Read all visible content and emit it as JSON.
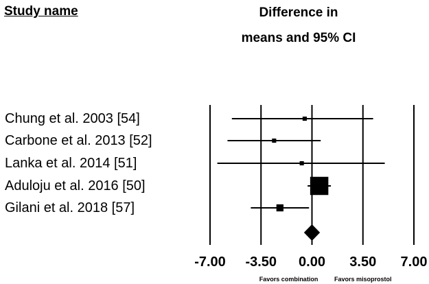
{
  "header": {
    "study_name": "Study name",
    "effect_line1": "Difference in",
    "effect_line2": "means and 95% CI"
  },
  "chart_data": {
    "type": "forest",
    "xlim": [
      -7.0,
      7.0
    ],
    "xticks": [
      -7.0,
      -3.5,
      0.0,
      3.5,
      7.0
    ],
    "xtick_labels": [
      "-7.00",
      "-3.50",
      "0.00",
      "3.50",
      "7.00"
    ],
    "reference_lines": [
      -7.0,
      -3.5,
      0.0,
      3.5,
      7.0
    ],
    "favors_left": "Favors combination",
    "favors_right": "Favors misoprostol",
    "studies": [
      {
        "name": "Chung et al. 2003 [54]",
        "mean": -0.5,
        "lower": -5.5,
        "upper": 4.2,
        "weight": 0.6
      },
      {
        "name": "Carbone et al. 2013 [52]",
        "mean": -2.6,
        "lower": -5.8,
        "upper": 0.6,
        "weight": 0.6
      },
      {
        "name": "Lanka et al. 2014 [51]",
        "mean": -0.7,
        "lower": -6.5,
        "upper": 5.0,
        "weight": 0.6
      },
      {
        "name": "Aduloju et al. 2016 [50]",
        "mean": 0.5,
        "lower": -0.3,
        "upper": 1.3,
        "weight": 4.0
      },
      {
        "name": "Gilani et al. 2018 [57]",
        "mean": -2.2,
        "lower": -4.2,
        "upper": -0.2,
        "weight": 1.3
      }
    ],
    "summary": {
      "mean": 0.0,
      "lower": -0.55,
      "upper": 0.55
    }
  }
}
